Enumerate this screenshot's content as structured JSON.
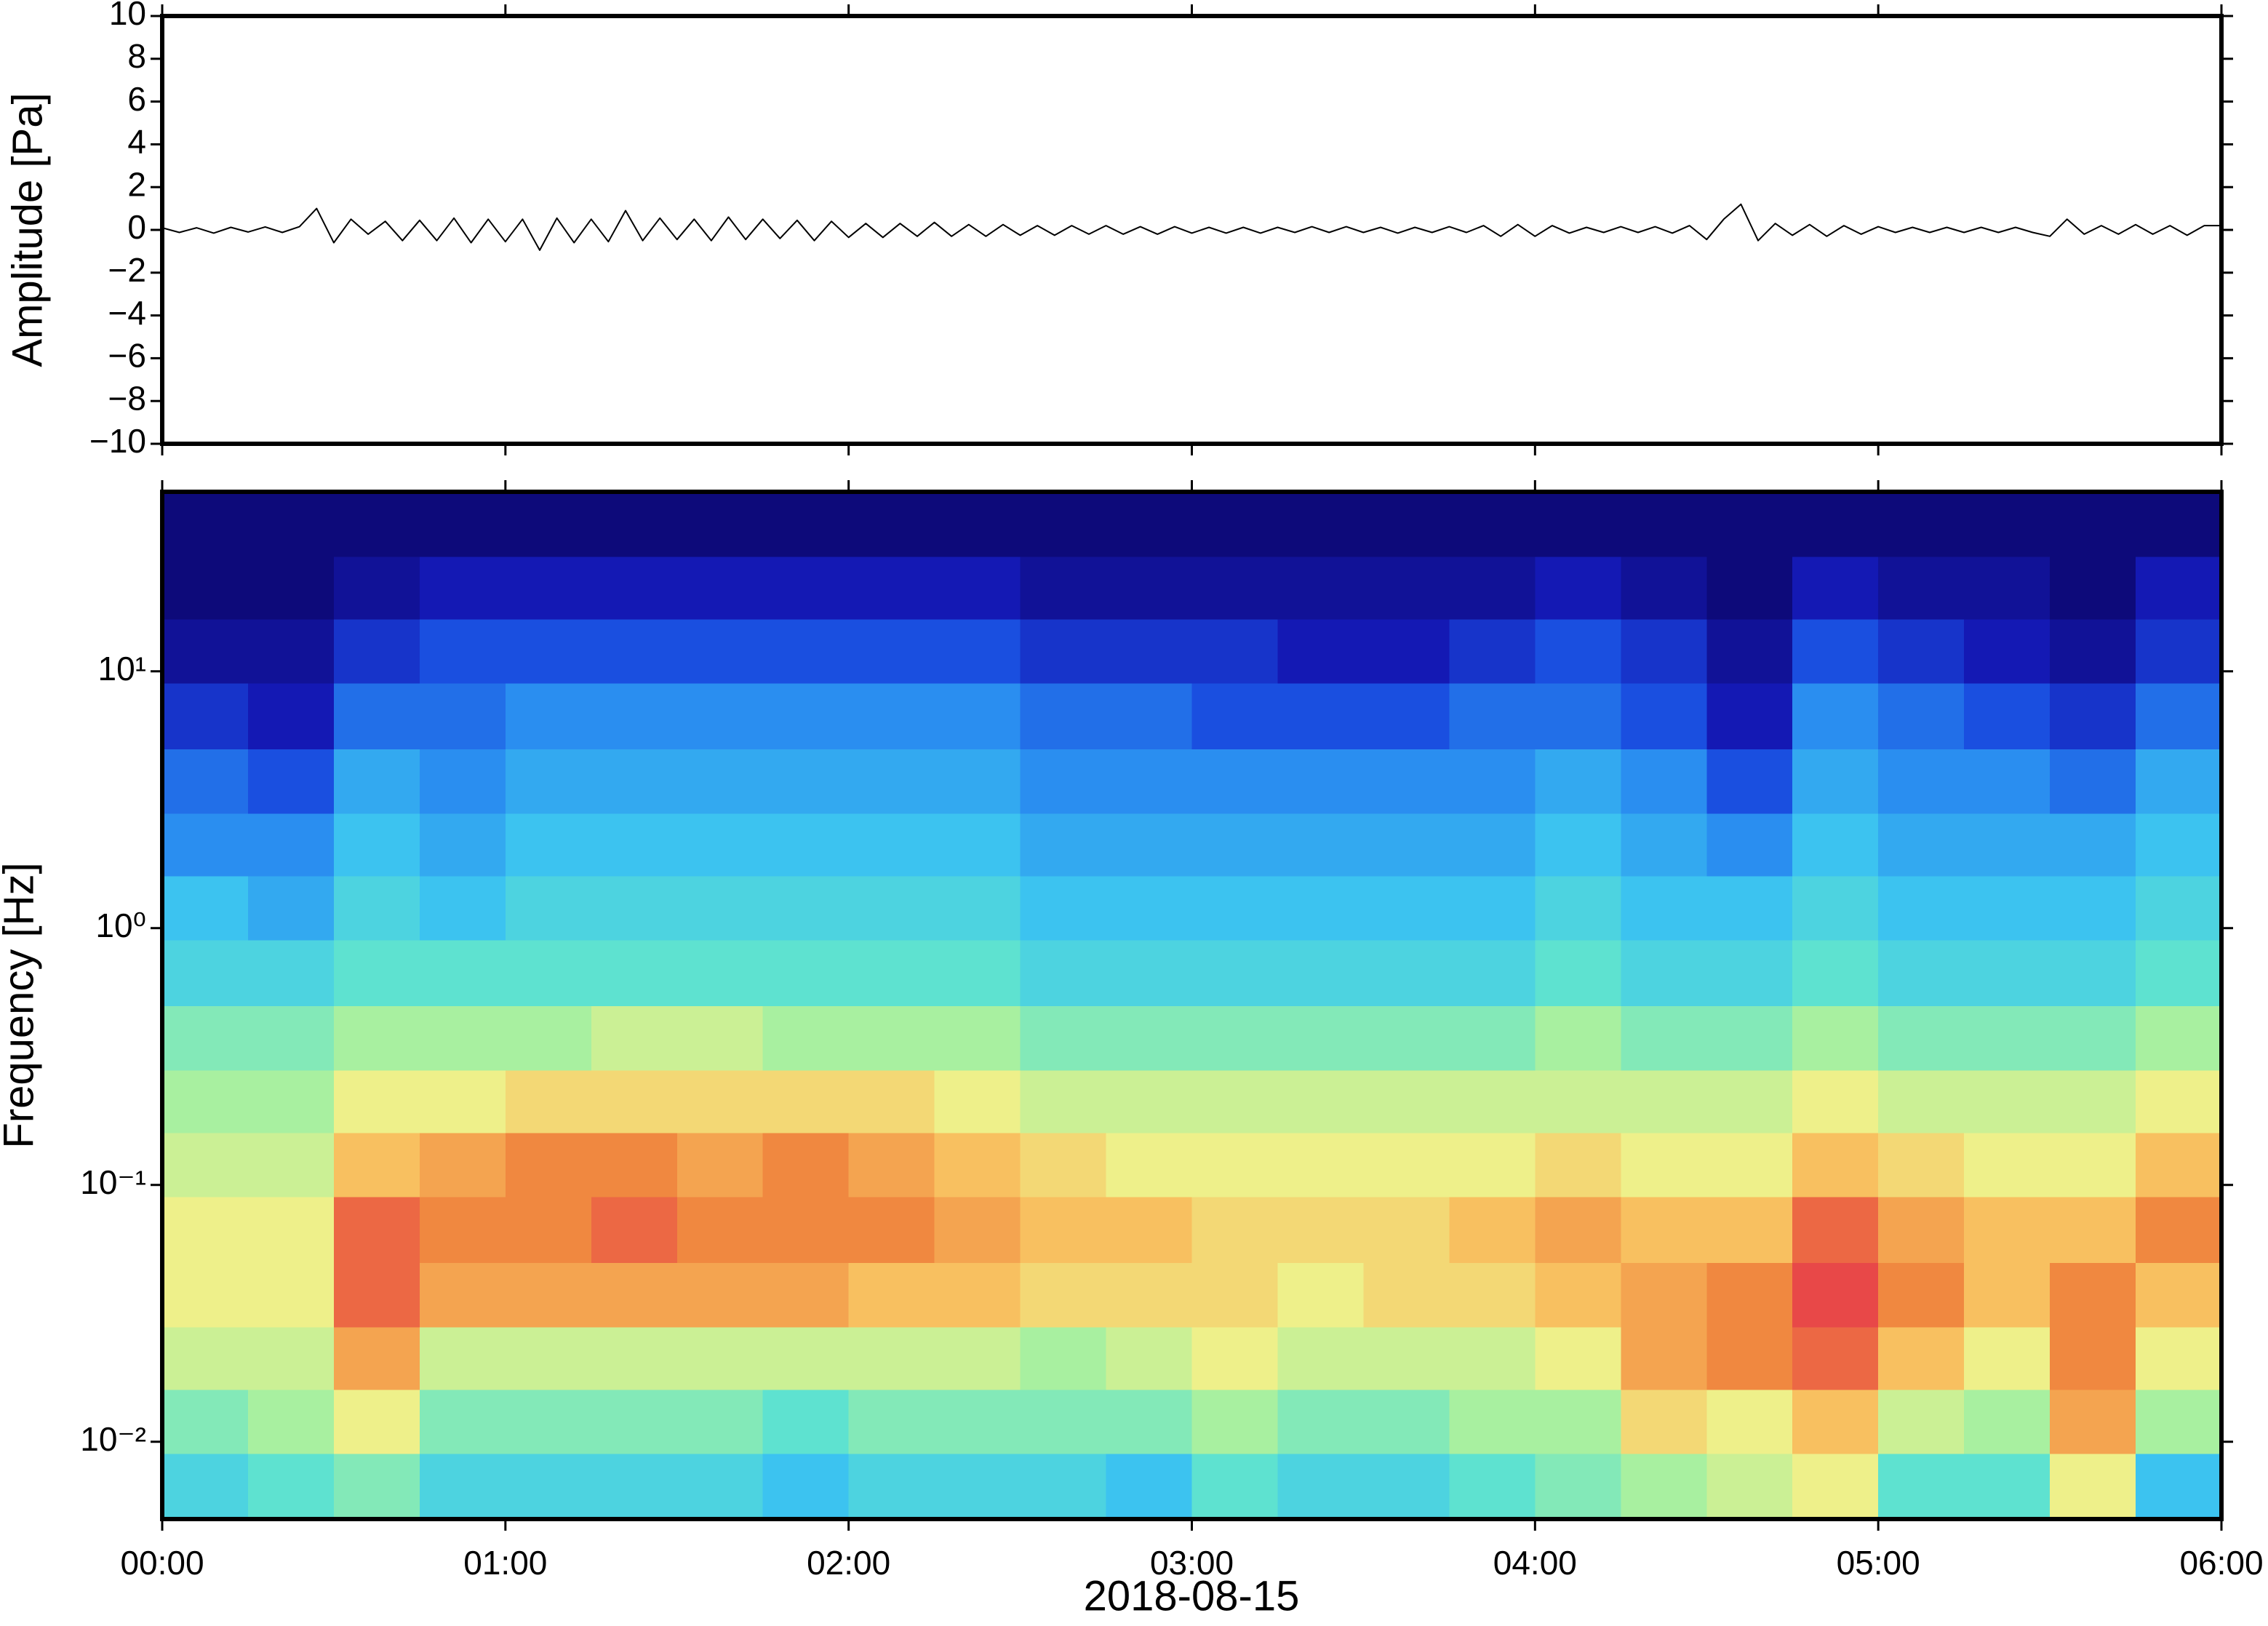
{
  "chart_data": [
    {
      "type": "line",
      "ylabel": "Amplitude [Pa]",
      "color": "#000000",
      "x": [
        0,
        3,
        6,
        9,
        12,
        15,
        18,
        21,
        24,
        27,
        30,
        33,
        36,
        39,
        42,
        45,
        48,
        51,
        54,
        57,
        60,
        63,
        66,
        69,
        72,
        75,
        78,
        81,
        84,
        87,
        90,
        93,
        96,
        99,
        102,
        105,
        108,
        111,
        114,
        117,
        120,
        123,
        126,
        129,
        132,
        135,
        138,
        141,
        144,
        147,
        150,
        153,
        156,
        159,
        162,
        165,
        168,
        171,
        174,
        177,
        180,
        183,
        186,
        189,
        192,
        195,
        198,
        201,
        204,
        207,
        210,
        213,
        216,
        219,
        222,
        225,
        228,
        231,
        234,
        237,
        240,
        243,
        246,
        249,
        252,
        255,
        258,
        261,
        264,
        267,
        270,
        273,
        276,
        279,
        282,
        285,
        288,
        291,
        294,
        297,
        300,
        303,
        306,
        309,
        312,
        315,
        318,
        321,
        324,
        327,
        330,
        333,
        336,
        339,
        342,
        345,
        348,
        351,
        354,
        357,
        360
      ],
      "values": [
        0.1,
        -0.12,
        0.1,
        -0.15,
        0.12,
        -0.1,
        0.14,
        -0.12,
        0.15,
        1.0,
        -0.6,
        0.5,
        -0.2,
        0.4,
        -0.5,
        0.45,
        -0.5,
        0.55,
        -0.6,
        0.5,
        -0.55,
        0.5,
        -0.95,
        0.55,
        -0.6,
        0.5,
        -0.55,
        0.9,
        -0.5,
        0.55,
        -0.45,
        0.5,
        -0.5,
        0.6,
        -0.45,
        0.5,
        -0.4,
        0.45,
        -0.5,
        0.4,
        -0.35,
        0.3,
        -0.35,
        0.3,
        -0.3,
        0.35,
        -0.3,
        0.25,
        -0.3,
        0.25,
        -0.25,
        0.2,
        -0.25,
        0.2,
        -0.2,
        0.2,
        -0.2,
        0.15,
        -0.2,
        0.15,
        -0.15,
        0.12,
        -0.15,
        0.12,
        -0.15,
        0.12,
        -0.12,
        0.15,
        -0.12,
        0.15,
        -0.12,
        0.12,
        -0.15,
        0.12,
        -0.12,
        0.15,
        -0.12,
        0.2,
        -0.3,
        0.25,
        -0.3,
        0.2,
        -0.15,
        0.12,
        -0.12,
        0.15,
        -0.12,
        0.15,
        -0.15,
        0.2,
        -0.45,
        0.5,
        1.2,
        -0.5,
        0.3,
        -0.25,
        0.25,
        -0.3,
        0.2,
        -0.2,
        0.15,
        -0.12,
        0.12,
        -0.12,
        0.12,
        -0.12,
        0.12,
        -0.12,
        0.12,
        -0.12,
        -0.3,
        0.5,
        -0.2,
        0.2,
        -0.2,
        0.25,
        -0.2,
        0.2,
        -0.25,
        0.2,
        0.2
      ],
      "xlim": [
        0,
        360
      ],
      "xticks": [
        0,
        60,
        120,
        180,
        240,
        300,
        360
      ],
      "xticklabels": false,
      "ylim": [
        -10,
        10
      ],
      "yticks": [
        {
          "value": -10,
          "label": "−10"
        },
        {
          "value": -8,
          "label": "−8"
        },
        {
          "value": -6,
          "label": "−6"
        },
        {
          "value": -4,
          "label": "−4"
        },
        {
          "value": -2,
          "label": "−2"
        },
        0,
        2,
        4,
        6,
        8,
        10
      ]
    },
    {
      "type": "heatmap",
      "ylabel": "Frequency [Hz]",
      "xlabel": "2018-08-15",
      "yscale": "log",
      "xbins": [
        0,
        15,
        30,
        45,
        60,
        75,
        90,
        105,
        120,
        135,
        150,
        165,
        180,
        195,
        210,
        225,
        240,
        255,
        270,
        285,
        300,
        315,
        330,
        345,
        360
      ],
      "ybins": [
        0.005,
        0.009,
        0.016,
        0.028,
        0.05,
        0.09,
        0.16,
        0.28,
        0.5,
        0.9,
        1.6,
        2.8,
        5,
        9,
        16,
        28,
        50
      ],
      "values": [
        [
          4.5,
          5,
          5.5,
          4.5,
          4.5,
          4.5,
          4.5,
          4,
          4.5,
          4.5,
          4.5,
          4,
          5,
          4.5,
          4.5,
          5,
          5.5,
          6,
          6.5,
          7,
          5,
          5,
          7,
          4
        ],
        [
          5.5,
          6,
          7,
          5.5,
          5.5,
          5.5,
          5.5,
          5,
          5.5,
          5.5,
          5.5,
          5.5,
          6,
          5.5,
          5.5,
          6,
          6,
          7.5,
          7,
          8,
          6.5,
          6,
          8.5,
          6
        ],
        [
          6.5,
          6.5,
          8.5,
          6.5,
          6.5,
          6.5,
          6.5,
          6.5,
          6.5,
          6.5,
          6,
          6.5,
          7,
          6.5,
          6.5,
          6.5,
          7,
          8.5,
          9,
          9.5,
          8,
          7,
          9,
          7
        ],
        [
          7,
          7,
          9.5,
          8.5,
          8.5,
          8.5,
          8.5,
          8.5,
          8,
          8,
          7.5,
          7.5,
          7.5,
          7,
          7.5,
          7.5,
          8,
          8.5,
          9,
          10,
          9,
          8,
          9,
          8
        ],
        [
          7,
          7,
          9.5,
          9,
          9,
          9.5,
          9,
          9,
          9,
          8.5,
          8,
          8,
          7.5,
          7.5,
          7.5,
          8,
          8.5,
          8,
          8,
          9.5,
          8.5,
          8,
          8,
          9
        ],
        [
          6.5,
          6.5,
          8,
          8.5,
          9,
          9,
          8.5,
          9,
          8.5,
          8,
          7.5,
          7,
          7,
          7,
          7,
          7,
          7.5,
          7,
          7,
          8,
          7.5,
          7,
          7,
          8
        ],
        [
          6,
          6,
          7,
          7,
          7.5,
          7.5,
          7.5,
          7.5,
          7.5,
          7,
          6.5,
          6.5,
          6.5,
          6.5,
          6.5,
          6.5,
          6.5,
          6.5,
          6.5,
          7,
          6.5,
          6.5,
          6.5,
          7
        ],
        [
          5.5,
          5.5,
          6,
          6,
          6,
          6.5,
          6.5,
          6,
          6,
          6,
          5.5,
          5.5,
          5.5,
          5.5,
          5.5,
          5.5,
          6,
          5.5,
          5.5,
          6,
          5.5,
          5.5,
          5.5,
          6
        ],
        [
          4.5,
          4.5,
          5,
          5,
          5,
          5,
          5,
          5,
          5,
          5,
          4.5,
          4.5,
          4.5,
          4.5,
          4.5,
          4.5,
          5,
          4.5,
          4.5,
          5,
          4.5,
          4.5,
          4.5,
          5
        ],
        [
          4,
          3.5,
          4.5,
          4,
          4.5,
          4.5,
          4.5,
          4.5,
          4.5,
          4.5,
          4,
          4,
          4,
          4,
          4,
          4,
          4.5,
          4,
          4,
          4.5,
          4,
          4,
          4,
          4.5
        ],
        [
          3,
          3,
          4,
          3.5,
          4,
          4,
          4,
          4,
          4,
          4,
          3.5,
          3.5,
          3.5,
          3.5,
          3.5,
          3.5,
          4,
          3.5,
          3,
          4,
          3.5,
          3.5,
          3.5,
          4
        ],
        [
          2.5,
          2,
          3.5,
          3,
          3.5,
          3.5,
          3.5,
          3.5,
          3.5,
          3.5,
          3,
          3,
          3,
          3,
          3,
          3,
          3.5,
          3,
          2,
          3.5,
          3,
          3,
          2.5,
          3.5
        ],
        [
          1.5,
          1,
          2.5,
          2.5,
          3,
          3,
          3,
          3,
          3,
          3,
          2.5,
          2.5,
          2,
          2,
          2,
          2.5,
          2.5,
          2,
          1,
          3,
          2.5,
          2,
          1.5,
          2.5
        ],
        [
          0.5,
          0.5,
          1.5,
          2,
          2,
          2,
          2,
          2,
          2,
          2,
          1.5,
          1.5,
          1.5,
          1,
          1,
          1.5,
          2,
          1.5,
          0.5,
          2,
          1.5,
          1,
          0.5,
          1.5
        ],
        [
          0,
          0,
          0.5,
          1,
          1,
          1,
          1,
          1,
          1,
          1,
          0.5,
          0.5,
          0.5,
          0.5,
          0.5,
          0.5,
          1,
          0.5,
          0,
          1,
          0.5,
          0.5,
          0,
          1
        ],
        [
          0,
          0,
          0,
          0,
          0,
          0,
          0,
          0,
          0,
          0,
          0,
          0,
          0,
          0,
          0,
          0,
          0,
          0,
          0,
          0,
          0,
          0,
          0,
          0
        ]
      ],
      "clim": [
        0,
        10
      ],
      "colormap": [
        "#0d0a7a",
        "#1419b4",
        "#1a4fe0",
        "#2a8ef0",
        "#3cc3f0",
        "#5ee2d0",
        "#a8f0a0",
        "#eef08a",
        "#f8c060",
        "#f08840",
        "#e84848"
      ],
      "xlim": [
        0,
        360
      ],
      "xticks": [
        {
          "value": 0,
          "label": "00:00"
        },
        {
          "value": 60,
          "label": "01:00"
        },
        {
          "value": 120,
          "label": "02:00"
        },
        {
          "value": 180,
          "label": "03:00"
        },
        {
          "value": 240,
          "label": "04:00"
        },
        {
          "value": 300,
          "label": "05:00"
        },
        {
          "value": 360,
          "label": "06:00"
        }
      ],
      "ylim": [
        0.005,
        50
      ],
      "yticks": [
        {
          "value": 0.01,
          "label": "10⁻²"
        },
        {
          "value": 0.1,
          "label": "10⁻¹"
        },
        {
          "value": 1,
          "label": "10⁰"
        },
        {
          "value": 10,
          "label": "10¹"
        }
      ]
    }
  ]
}
